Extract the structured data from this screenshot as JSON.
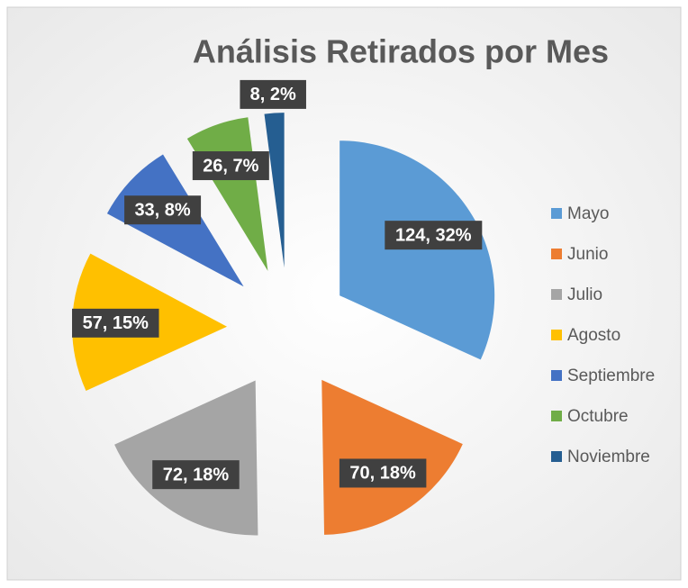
{
  "chart_data": {
    "type": "pie",
    "title": "Análisis Retirados por Mes",
    "categories": [
      "Mayo",
      "Junio",
      "Julio",
      "Agosto",
      "Septiembre",
      "Octubre",
      "Noviembre"
    ],
    "values": [
      124,
      70,
      72,
      57,
      33,
      26,
      8
    ],
    "value_labels": [
      "124, 32%",
      "70, 18%",
      "72, 18%",
      "57, 15%",
      "33, 8%",
      "26, 7%",
      "8, 2%"
    ],
    "colors": [
      "#5b9bd5",
      "#ed7d31",
      "#a5a5a5",
      "#ffc000",
      "#4472c4",
      "#70ad47",
      "#255e91"
    ],
    "legend": "right"
  }
}
